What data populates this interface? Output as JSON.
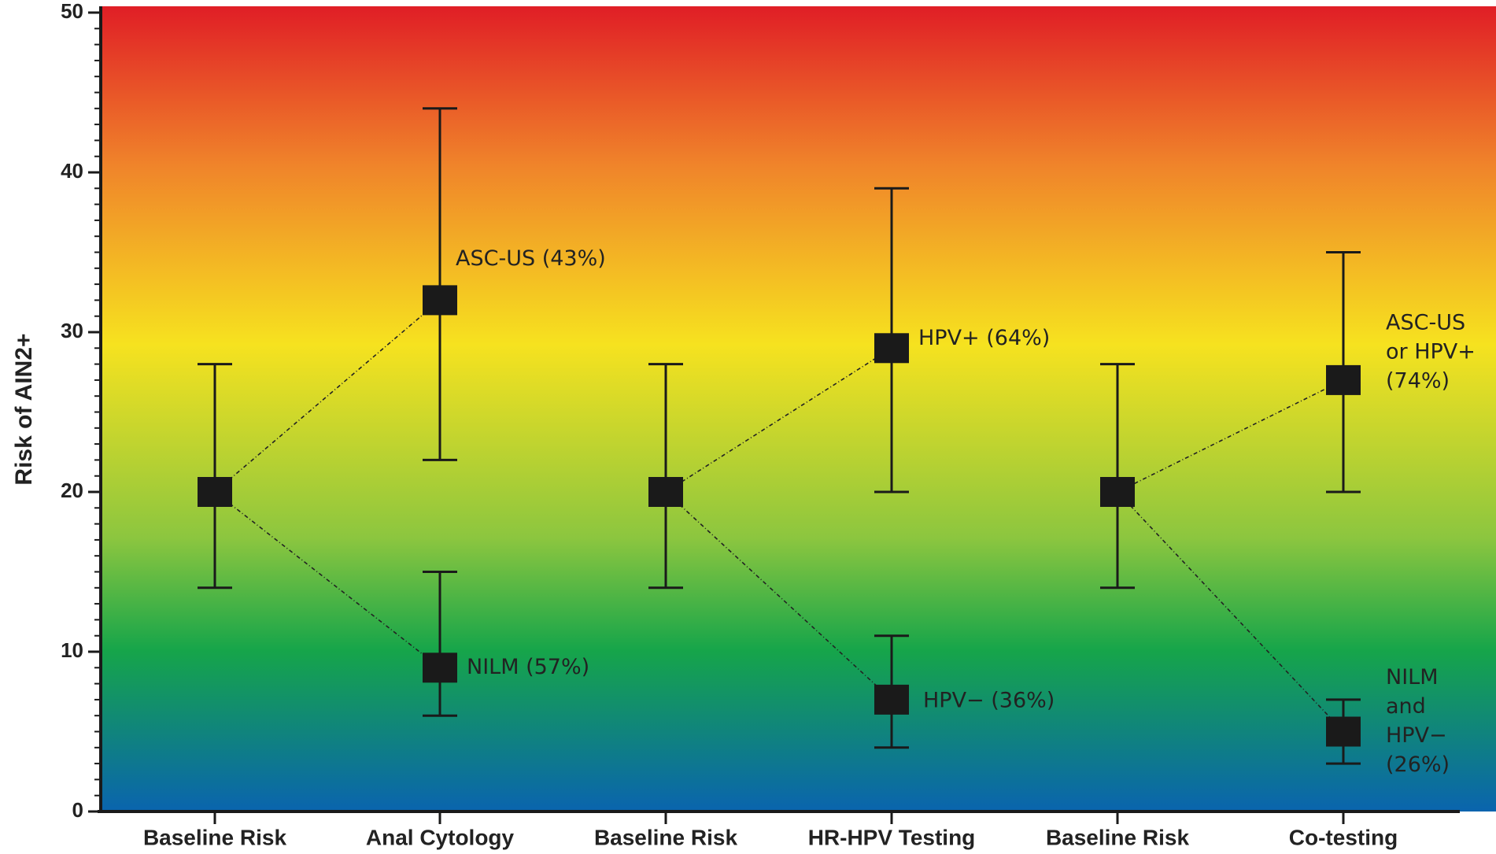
{
  "chart_data": {
    "type": "scatter",
    "title": "",
    "xlabel": "",
    "ylabel": "Risk of  AIN2+",
    "ylim": [
      0,
      50
    ],
    "yticks": [
      0,
      10,
      20,
      30,
      40,
      50
    ],
    "grid": false,
    "background": {
      "style": "vertical-gradient",
      "colors_top_to_bottom": [
        "#e01e26",
        "#f0852a",
        "#f6e21f",
        "#8cc63f",
        "#16a54a",
        "#0a64ae"
      ]
    },
    "categories": [
      "Baseline Risk",
      "Anal Cytology",
      "Baseline Risk",
      "HR-HPV Testing",
      "Baseline Risk",
      "Co-testing"
    ],
    "points": [
      {
        "category": 0,
        "value": 20,
        "low": 14,
        "high": 28,
        "label": ""
      },
      {
        "category": 1,
        "value": 32,
        "low": 22,
        "high": 44,
        "label": "ASC-US (43%)"
      },
      {
        "category": 1,
        "value": 9,
        "low": 6,
        "high": 15,
        "label": "NILM (57%)"
      },
      {
        "category": 2,
        "value": 20,
        "low": 14,
        "high": 28,
        "label": ""
      },
      {
        "category": 3,
        "value": 29,
        "low": 20,
        "high": 39,
        "label": "HPV+ (64%)"
      },
      {
        "category": 3,
        "value": 7,
        "low": 4,
        "high": 11,
        "label": "HPV− (36%)"
      },
      {
        "category": 4,
        "value": 20,
        "low": 14,
        "high": 28,
        "label": ""
      },
      {
        "category": 5,
        "value": 27,
        "low": 20,
        "high": 35,
        "label": "ASC-US or HPV+ (74%)"
      },
      {
        "category": 5,
        "value": 5,
        "low": 3,
        "high": 7,
        "label": "NILM and HPV− (26%)"
      }
    ],
    "connections": [
      [
        0,
        1
      ],
      [
        0,
        2
      ],
      [
        3,
        4
      ],
      [
        3,
        5
      ],
      [
        6,
        7
      ],
      [
        6,
        8
      ]
    ],
    "marker_color": "#1a1a1a"
  }
}
